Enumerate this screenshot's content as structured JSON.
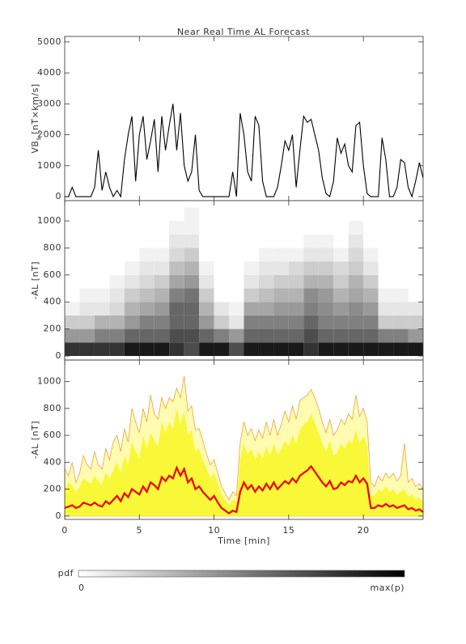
{
  "chart_data": [
    {
      "type": "line",
      "title": "Near Real Time AL Forecast",
      "ylabel": {
        "main": "VB",
        "sub": "s",
        "unit": "[nT×km/s]"
      },
      "color": "#000000",
      "xlim": [
        0,
        24
      ],
      "xticks": [
        0,
        5,
        10,
        15,
        20
      ],
      "ylim": [
        -130,
        5180
      ],
      "yticks": [
        0,
        1000,
        2000,
        3000,
        4000,
        5000
      ],
      "x": [
        0,
        0.25,
        0.5,
        0.75,
        1,
        1.25,
        1.5,
        1.75,
        2,
        2.25,
        2.5,
        2.75,
        3,
        3.25,
        3.5,
        3.75,
        4,
        4.25,
        4.5,
        4.75,
        5,
        5.25,
        5.5,
        5.75,
        6,
        6.25,
        6.5,
        6.75,
        7,
        7.25,
        7.5,
        7.75,
        8,
        8.25,
        8.5,
        8.75,
        9,
        9.25,
        9.5,
        9.75,
        10,
        10.25,
        10.5,
        10.75,
        11,
        11.25,
        11.5,
        11.75,
        12,
        12.25,
        12.5,
        12.75,
        13,
        13.25,
        13.5,
        13.75,
        14,
        14.25,
        14.5,
        14.75,
        15,
        15.25,
        15.5,
        15.75,
        16,
        16.25,
        16.5,
        16.75,
        17,
        17.25,
        17.5,
        17.75,
        18,
        18.25,
        18.5,
        18.75,
        19,
        19.25,
        19.5,
        19.75,
        20,
        20.25,
        20.5,
        20.75,
        21,
        21.25,
        21.5,
        21.75,
        22,
        22.25,
        22.5,
        22.75,
        23,
        23.25,
        23.5,
        23.75,
        24
      ],
      "values": [
        0,
        0,
        300,
        0,
        0,
        0,
        0,
        0,
        300,
        1500,
        200,
        800,
        300,
        0,
        200,
        0,
        1200,
        2000,
        2600,
        500,
        2000,
        2600,
        1200,
        1800,
        2500,
        800,
        2600,
        1500,
        2300,
        3000,
        1500,
        2700,
        1000,
        500,
        800,
        2000,
        200,
        0,
        0,
        0,
        0,
        0,
        0,
        0,
        0,
        800,
        0,
        2700,
        2000,
        800,
        500,
        2600,
        2300,
        500,
        0,
        0,
        0,
        300,
        1000,
        1800,
        1500,
        2000,
        300,
        1500,
        2600,
        2400,
        2500,
        2000,
        1500,
        600,
        100,
        0,
        500,
        1900,
        1400,
        1700,
        1000,
        800,
        2300,
        2400,
        1000,
        100,
        0,
        0,
        0,
        1900,
        1200,
        0,
        0,
        300,
        1200,
        1100,
        300,
        0,
        500,
        1100,
        600
      ]
    },
    {
      "type": "heatmap",
      "ylabel": "-AL [nT]",
      "xlim": [
        0,
        24
      ],
      "xticks": [
        0,
        5,
        10,
        15,
        20
      ],
      "ylim": [
        -30,
        1150
      ],
      "yticks": [
        0,
        200,
        400,
        600,
        800,
        1000
      ],
      "xbins": [
        0,
        1,
        2,
        3,
        4,
        5,
        6,
        7,
        8,
        9,
        10,
        11,
        12,
        13,
        14,
        15,
        16,
        17,
        18,
        19,
        20,
        21,
        22,
        23,
        24
      ],
      "ybins": [
        0,
        100,
        200,
        300,
        400,
        500,
        600,
        700,
        800,
        900,
        1000,
        1100,
        1200
      ],
      "values": [
        [
          0.8,
          0.8,
          0.8,
          0.8,
          0.9,
          0.9,
          0.9,
          0.8,
          0.7,
          0.9,
          0.9,
          0.7,
          0.9,
          0.9,
          0.9,
          0.9,
          0.8,
          0.9,
          0.9,
          0.9,
          0.9,
          0.9,
          0.9,
          0.9
        ],
        [
          0.4,
          0.4,
          0.5,
          0.5,
          0.6,
          0.6,
          0.6,
          0.7,
          0.7,
          0.6,
          0.5,
          0.4,
          0.6,
          0.6,
          0.6,
          0.6,
          0.7,
          0.6,
          0.6,
          0.6,
          0.6,
          0.5,
          0.5,
          0.4
        ],
        [
          0.2,
          0.2,
          0.3,
          0.3,
          0.4,
          0.5,
          0.5,
          0.6,
          0.6,
          0.4,
          0.2,
          0.1,
          0.5,
          0.5,
          0.5,
          0.5,
          0.6,
          0.5,
          0.5,
          0.5,
          0.5,
          0.2,
          0.2,
          0.2
        ],
        [
          0.05,
          0.1,
          0.1,
          0.15,
          0.3,
          0.35,
          0.4,
          0.6,
          0.6,
          0.3,
          0.1,
          0.05,
          0.35,
          0.35,
          0.4,
          0.4,
          0.5,
          0.45,
          0.4,
          0.45,
          0.4,
          0.1,
          0.1,
          0.1
        ],
        [
          0,
          0.05,
          0.05,
          0.1,
          0.2,
          0.25,
          0.3,
          0.5,
          0.55,
          0.2,
          0,
          0,
          0.2,
          0.25,
          0.3,
          0.3,
          0.45,
          0.4,
          0.3,
          0.35,
          0.3,
          0.05,
          0.05,
          0
        ],
        [
          0,
          0,
          0,
          0.05,
          0.1,
          0.15,
          0.2,
          0.35,
          0.4,
          0.1,
          0,
          0,
          0.1,
          0.15,
          0.2,
          0.2,
          0.3,
          0.3,
          0.2,
          0.3,
          0.2,
          0,
          0,
          0
        ],
        [
          0,
          0,
          0,
          0,
          0.05,
          0.1,
          0.1,
          0.25,
          0.3,
          0.05,
          0,
          0,
          0.05,
          0.1,
          0.1,
          0.15,
          0.2,
          0.2,
          0.15,
          0.2,
          0.1,
          0,
          0,
          0
        ],
        [
          0,
          0,
          0,
          0,
          0,
          0.05,
          0.05,
          0.15,
          0.2,
          0,
          0,
          0,
          0,
          0.05,
          0.05,
          0.05,
          0.1,
          0.1,
          0.05,
          0.15,
          0.05,
          0,
          0,
          0
        ],
        [
          0,
          0,
          0,
          0,
          0,
          0,
          0,
          0.1,
          0.1,
          0,
          0,
          0,
          0,
          0,
          0,
          0,
          0.05,
          0.05,
          0,
          0.1,
          0,
          0,
          0,
          0
        ],
        [
          0,
          0,
          0,
          0,
          0,
          0,
          0,
          0.05,
          0.05,
          0,
          0,
          0,
          0,
          0,
          0,
          0,
          0,
          0,
          0,
          0.05,
          0,
          0,
          0,
          0
        ],
        [
          0,
          0,
          0,
          0,
          0,
          0,
          0,
          0,
          0.05,
          0,
          0,
          0,
          0,
          0,
          0,
          0,
          0,
          0,
          0,
          0,
          0,
          0,
          0,
          0
        ],
        [
          0,
          0,
          0,
          0,
          0,
          0,
          0,
          0,
          0,
          0,
          0,
          0,
          0,
          0,
          0,
          0,
          0,
          0,
          0,
          0,
          0,
          0,
          0,
          0
        ]
      ],
      "colorbar": {
        "label": "pdf",
        "ticks": [
          0,
          {
            "value": 1,
            "label": "max(p)"
          }
        ]
      }
    },
    {
      "type": "area",
      "ylabel": "-AL [nT]",
      "xlabel": "Time [min]",
      "xlim": [
        0,
        24
      ],
      "xticks": [
        0,
        5,
        10,
        15,
        20
      ],
      "ylim": [
        -25,
        1160
      ],
      "yticks": [
        0,
        200,
        400,
        600,
        800,
        1000
      ],
      "edge_color": "#f0a040",
      "x": [
        0,
        0.25,
        0.5,
        0.75,
        1,
        1.25,
        1.5,
        1.75,
        2,
        2.25,
        2.5,
        2.75,
        3,
        3.25,
        3.5,
        3.75,
        4,
        4.25,
        4.5,
        4.75,
        5,
        5.25,
        5.5,
        5.75,
        6,
        6.25,
        6.5,
        6.75,
        7,
        7.25,
        7.5,
        7.75,
        8,
        8.25,
        8.5,
        8.75,
        9,
        9.25,
        9.5,
        9.75,
        10,
        10.25,
        10.5,
        10.75,
        11,
        11.25,
        11.5,
        11.75,
        12,
        12.25,
        12.5,
        12.75,
        13,
        13.25,
        13.5,
        13.75,
        14,
        14.25,
        14.5,
        14.75,
        15,
        15.25,
        15.5,
        15.75,
        16,
        16.25,
        16.5,
        16.75,
        17,
        17.25,
        17.5,
        17.75,
        18,
        18.25,
        18.5,
        18.75,
        19,
        19.25,
        19.5,
        19.75,
        20,
        20.25,
        20.5,
        20.75,
        21,
        21.25,
        21.5,
        21.75,
        22,
        22.25,
        22.5,
        22.75,
        23,
        23.25,
        23.5,
        23.75,
        24
      ],
      "series": [
        {
          "color": "#fffbb0",
          "values": [
            350,
            300,
            400,
            250,
            320,
            450,
            380,
            350,
            480,
            380,
            350,
            500,
            420,
            550,
            600,
            480,
            650,
            550,
            800,
            700,
            620,
            800,
            700,
            900,
            760,
            720,
            880,
            800,
            880,
            850,
            950,
            880,
            1040,
            780,
            820,
            640,
            650,
            560,
            460,
            380,
            420,
            320,
            220,
            170,
            120,
            180,
            150,
            550,
            700,
            600,
            650,
            560,
            640,
            580,
            700,
            600,
            720,
            600,
            680,
            780,
            700,
            820,
            720,
            860,
            880,
            900,
            940,
            880,
            800,
            700,
            620,
            720,
            600,
            640,
            720,
            680,
            760,
            720,
            900,
            740,
            800,
            700,
            250,
            220,
            300,
            260,
            320,
            280,
            320,
            260,
            300,
            540,
            250,
            280,
            220,
            240,
            200
          ]
        },
        {
          "color": "#f8f838",
          "values": [
            200,
            250,
            230,
            180,
            220,
            280,
            260,
            240,
            300,
            260,
            240,
            320,
            280,
            340,
            400,
            320,
            450,
            380,
            550,
            480,
            430,
            600,
            500,
            620,
            560,
            520,
            700,
            620,
            700,
            650,
            800,
            680,
            780,
            600,
            640,
            480,
            500,
            420,
            350,
            280,
            320,
            240,
            160,
            120,
            80,
            120,
            100,
            420,
            540,
            460,
            500,
            420,
            480,
            430,
            520,
            450,
            540,
            460,
            500,
            560,
            520,
            600,
            540,
            640,
            680,
            700,
            760,
            690,
            620,
            540,
            480,
            560,
            450,
            470,
            540,
            500,
            560,
            540,
            640,
            540,
            600,
            520,
            150,
            150,
            200,
            180,
            220,
            180,
            200,
            160,
            180,
            200,
            140,
            160,
            120,
            140,
            100
          ]
        },
        {
          "color": "#ee0000",
          "values": [
            60,
            70,
            80,
            60,
            70,
            100,
            90,
            80,
            100,
            80,
            70,
            110,
            90,
            120,
            150,
            110,
            170,
            140,
            200,
            180,
            160,
            220,
            180,
            250,
            230,
            200,
            290,
            260,
            300,
            280,
            360,
            300,
            350,
            250,
            280,
            200,
            220,
            180,
            150,
            120,
            150,
            100,
            60,
            40,
            20,
            40,
            30,
            180,
            250,
            200,
            230,
            180,
            220,
            190,
            240,
            200,
            250,
            200,
            230,
            260,
            240,
            280,
            250,
            300,
            320,
            340,
            370,
            330,
            290,
            250,
            220,
            260,
            200,
            210,
            250,
            230,
            260,
            250,
            300,
            250,
            280,
            240,
            60,
            60,
            80,
            70,
            90,
            70,
            80,
            60,
            70,
            80,
            50,
            60,
            40,
            50,
            30
          ]
        }
      ]
    }
  ]
}
